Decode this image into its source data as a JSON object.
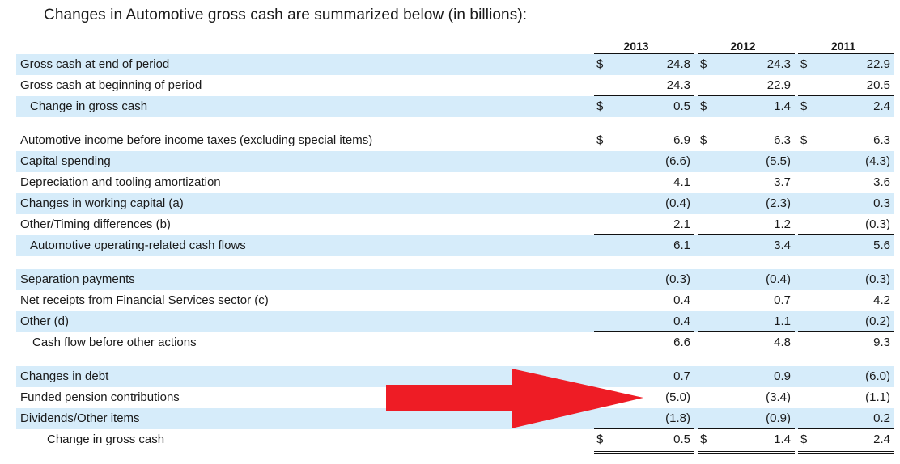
{
  "title": "Changes in Automotive gross cash are summarized below (in billions):",
  "years": [
    "2013",
    "2012",
    "2011"
  ],
  "currency_symbol": "$",
  "rows": [
    {
      "label": "Gross cash at end of period",
      "v": [
        "24.8",
        "24.3",
        "22.9"
      ]
    },
    {
      "label": "Gross cash at beginning of period",
      "v": [
        "24.3",
        "22.9",
        "20.5"
      ]
    },
    {
      "label": "Change in gross cash",
      "v": [
        "0.5",
        "1.4",
        "2.4"
      ]
    },
    {
      "label": "Automotive income before income taxes (excluding special items)",
      "v": [
        "6.9",
        "6.3",
        "6.3"
      ]
    },
    {
      "label": "Capital spending",
      "v": [
        "(6.6)",
        "(5.5)",
        "(4.3)"
      ]
    },
    {
      "label": "Depreciation and tooling amortization",
      "v": [
        "4.1",
        "3.7",
        "3.6"
      ]
    },
    {
      "label": "Changes in working capital (a)",
      "v": [
        "(0.4)",
        "(2.3)",
        "0.3"
      ]
    },
    {
      "label": "Other/Timing differences (b)",
      "v": [
        "2.1",
        "1.2",
        "(0.3)"
      ]
    },
    {
      "label": "Automotive operating-related cash flows",
      "v": [
        "6.1",
        "3.4",
        "5.6"
      ]
    },
    {
      "label": "Separation payments",
      "v": [
        "(0.3)",
        "(0.4)",
        "(0.3)"
      ]
    },
    {
      "label": "Net receipts from Financial Services sector (c)",
      "v": [
        "0.4",
        "0.7",
        "4.2"
      ]
    },
    {
      "label": "Other (d)",
      "v": [
        "0.4",
        "1.1",
        "(0.2)"
      ]
    },
    {
      "label": "Cash flow before other actions",
      "v": [
        "6.6",
        "4.8",
        "9.3"
      ]
    },
    {
      "label": "Changes in debt",
      "v": [
        "0.7",
        "0.9",
        "(6.0)"
      ]
    },
    {
      "label": "Funded pension contributions",
      "v": [
        "(5.0)",
        "(3.4)",
        "(1.1)"
      ]
    },
    {
      "label": "Dividends/Other items",
      "v": [
        "(1.8)",
        "(0.9)",
        "0.2"
      ]
    },
    {
      "label": "Change in gross cash",
      "v": [
        "0.5",
        "1.4",
        "2.4"
      ]
    }
  ],
  "arrow_color": "#ee1c25",
  "shade_color": "#d6ecfa"
}
